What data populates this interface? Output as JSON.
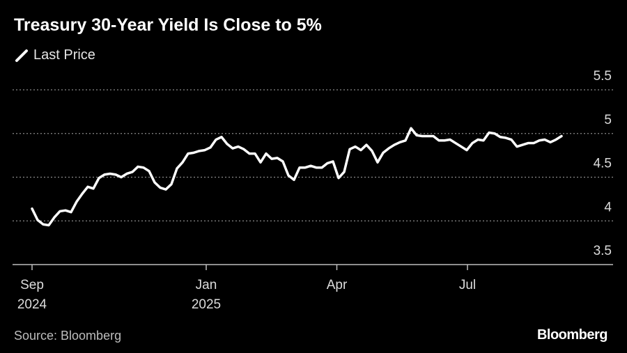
{
  "chart_data": {
    "type": "line",
    "title": "Treasury 30-Year Yield Is Close to 5%",
    "source": "Source: Bloomberg",
    "brand": "Bloomberg",
    "x": [
      0,
      0.128,
      0.256,
      0.384,
      0.512,
      0.64,
      0.768,
      0.896,
      1.024,
      1.152,
      1.28,
      1.408,
      1.536,
      1.664,
      1.792,
      1.92,
      2.048,
      2.176,
      2.304,
      2.432,
      2.56,
      2.688,
      2.816,
      2.944,
      3.072,
      3.2,
      3.328,
      3.456,
      3.584,
      3.712,
      3.84,
      3.968,
      4.096,
      4.224,
      4.352,
      4.48,
      4.608,
      4.736,
      4.864,
      4.992,
      5.12,
      5.248,
      5.376,
      5.504,
      5.632,
      5.76,
      5.888,
      6.016,
      6.144,
      6.272,
      6.4,
      6.528,
      6.656,
      6.784,
      6.912,
      7.04,
      7.168,
      7.296,
      7.424,
      7.552,
      7.68,
      7.808,
      7.936,
      8.064,
      8.192,
      8.32,
      8.448,
      8.576,
      8.704,
      8.832,
      8.96,
      9.088,
      9.216,
      9.344,
      9.472,
      9.6,
      9.728,
      9.856,
      9.984,
      10.112,
      10.24,
      10.368,
      10.496,
      10.624,
      10.752,
      10.88,
      11.008,
      11.136,
      11.264,
      11.392,
      11.52,
      11.648,
      11.776,
      11.904,
      12.032,
      12.16
    ],
    "series": [
      {
        "name": "Last Price",
        "color": "#ffffff",
        "values": [
          4.14,
          4.01,
          3.96,
          3.95,
          4.04,
          4.11,
          4.12,
          4.1,
          4.22,
          4.31,
          4.39,
          4.37,
          4.49,
          4.53,
          4.54,
          4.53,
          4.5,
          4.54,
          4.56,
          4.62,
          4.61,
          4.57,
          4.44,
          4.38,
          4.36,
          4.42,
          4.6,
          4.67,
          4.77,
          4.78,
          4.8,
          4.81,
          4.84,
          4.93,
          4.96,
          4.88,
          4.83,
          4.85,
          4.82,
          4.77,
          4.77,
          4.67,
          4.77,
          4.71,
          4.72,
          4.68,
          4.52,
          4.47,
          4.61,
          4.61,
          4.63,
          4.61,
          4.61,
          4.66,
          4.68,
          4.49,
          4.56,
          4.82,
          4.85,
          4.81,
          4.87,
          4.8,
          4.67,
          4.78,
          4.83,
          4.87,
          4.9,
          4.92,
          5.06,
          4.98,
          4.97,
          4.97,
          4.97,
          4.92,
          4.92,
          4.93,
          4.89,
          4.85,
          4.81,
          4.89,
          4.93,
          4.92,
          5.01,
          5.0,
          4.96,
          4.95,
          4.93,
          4.85,
          4.87,
          4.89,
          4.89,
          4.92,
          4.93,
          4.9,
          4.93,
          4.97
        ]
      }
    ],
    "xlim": [
      -0.448,
      13.344
    ],
    "xticks": [
      {
        "value": 0,
        "label": "Sep 2024"
      },
      {
        "value": 4,
        "label": "Jan 2025"
      },
      {
        "value": 7,
        "label": "Apr"
      },
      {
        "value": 10,
        "label": "Jul"
      }
    ],
    "ylim": [
      3.5,
      5.5
    ],
    "yticks": [
      3.5,
      4,
      4.5,
      5,
      5.5
    ],
    "grid": true
  }
}
